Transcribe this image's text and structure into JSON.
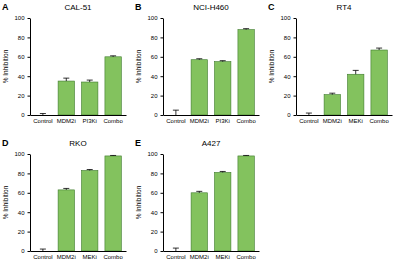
{
  "chart_data": [
    {
      "type": "bar",
      "title": "CAL-51",
      "annotations": [
        "A"
      ],
      "ylabel": "% Inhibition",
      "categories": [
        "Control",
        "MDM2i",
        "PI3Ki",
        "Combo"
      ],
      "values": [
        0,
        35,
        34,
        60
      ],
      "errors": [
        1.5,
        3,
        2,
        1
      ],
      "color": "#83c25e",
      "ylim": [
        0,
        100
      ],
      "yticks": [
        0,
        20,
        40,
        60,
        80,
        100
      ]
    },
    {
      "type": "bar",
      "title": "NCI-H460",
      "annotations": [
        "B"
      ],
      "ylabel": "% Inhibition",
      "categories": [
        "Control",
        "MDM2i",
        "PI3Ki",
        "Combo"
      ],
      "values": [
        0,
        57,
        55,
        88
      ],
      "errors": [
        5,
        1,
        1,
        1
      ],
      "color": "#83c25e",
      "ylim": [
        0,
        100
      ],
      "yticks": [
        0,
        20,
        40,
        60,
        80,
        100
      ]
    },
    {
      "type": "bar",
      "title": "RT4",
      "annotations": [
        "C"
      ],
      "ylabel": "% Inhibition",
      "categories": [
        "Control",
        "MDM2i",
        "MEKi",
        "Combo"
      ],
      "values": [
        0,
        21,
        42,
        67
      ],
      "errors": [
        2,
        1.5,
        4,
        2
      ],
      "color": "#83c25e",
      "ylim": [
        0,
        100
      ],
      "yticks": [
        0,
        20,
        40,
        60,
        80,
        100
      ]
    },
    {
      "type": "bar",
      "title": "RKO",
      "annotations": [
        "D"
      ],
      "ylabel": "% Inhibition",
      "categories": [
        "Control",
        "MDM2i",
        "MEKi",
        "Combo"
      ],
      "values": [
        0,
        63,
        83,
        98
      ],
      "errors": [
        2,
        1.5,
        1,
        0.5
      ],
      "color": "#83c25e",
      "ylim": [
        0,
        100
      ],
      "yticks": [
        0,
        20,
        40,
        60,
        80,
        100
      ]
    },
    {
      "type": "bar",
      "title": "A427",
      "annotations": [
        "E"
      ],
      "ylabel": "% Inhibition",
      "categories": [
        "Control",
        "MDM2i",
        "MEKi",
        "Combo"
      ],
      "values": [
        0,
        60,
        81,
        98
      ],
      "errors": [
        3,
        1.5,
        1,
        0.5
      ],
      "color": "#83c25e",
      "ylim": [
        0,
        100
      ],
      "yticks": [
        0,
        20,
        40,
        60,
        80,
        100
      ]
    }
  ]
}
